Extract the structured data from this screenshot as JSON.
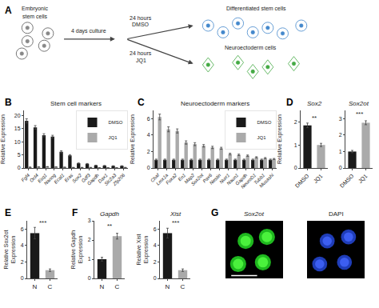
{
  "chart_data": [
    {
      "type": "diagram",
      "annotations": [
        "A",
        "Embryonic",
        "stem cells",
        "4 days culture",
        "24 hours",
        "DMSO",
        "24 hours",
        "JQ1",
        "Differentiated stem cells",
        "Neuroectoderm cells"
      ],
      "colors": [
        "#555555",
        "#888888",
        "#4488cc",
        "#44aa44"
      ]
    },
    {
      "type": "bar",
      "title": "Stem cell markers",
      "ylabel": "Relative Expression",
      "categories": [
        "Fgf4",
        "Oct4",
        "Esq1",
        "Nanog",
        "Ecat1",
        "Eras",
        "Sox2",
        "Gdf3",
        "Gapdh",
        "Dax1",
        "Slc2a3",
        "Zfp206"
      ],
      "series": [
        {
          "name": "DMSO",
          "color": "#1a1a1a",
          "values": [
            18.0,
            15.5,
            12.5,
            12.0,
            6.2,
            4.8,
            1.8,
            1.6,
            1.0,
            0.9,
            0.8,
            0.8
          ],
          "errors": [
            0.8,
            0.7,
            0.6,
            0.5,
            0.4,
            0.3,
            0.15,
            0.12,
            0.08,
            0.07,
            0.06,
            0.07
          ]
        },
        {
          "name": "JQ1",
          "color": "#aaaaaa",
          "values": [
            0.3,
            0.4,
            0.5,
            0.4,
            0.3,
            0.2,
            0.2,
            0.2,
            0.1,
            0.1,
            0.1,
            0.2
          ],
          "errors": [
            0.05,
            0.04,
            0.05,
            0.04,
            0.03,
            0.02,
            0.02,
            0.02,
            0.01,
            0.01,
            0.01,
            0.02
          ]
        }
      ],
      "ylim": [
        0,
        22
      ],
      "yticks": [
        0,
        5,
        10,
        15,
        20
      ],
      "grid": false,
      "legend": "upper right",
      "annotations": [
        "B"
      ]
    },
    {
      "type": "bar",
      "title": "Neuroectoderm markers",
      "ylabel": "Relative Expression",
      "categories": [
        "Chaf",
        "Lmx1a",
        "Foxa2",
        "En1",
        "Map2",
        "Sox2ot",
        "Pax6",
        "Nestin",
        "Nurr1",
        "Naun1",
        "Gapdh",
        "NeuroD1",
        "Tubb1",
        "Musashi"
      ],
      "series": [
        {
          "name": "DMSO",
          "color": "#1a1a1a",
          "values": [
            1.0,
            1.0,
            1.0,
            1.0,
            1.0,
            1.0,
            1.0,
            1.0,
            1.0,
            1.0,
            1.0,
            1.0,
            1.0,
            1.0
          ],
          "errors": [
            0.08,
            0.08,
            0.08,
            0.08,
            0.08,
            0.08,
            0.08,
            0.08,
            0.08,
            0.08,
            0.08,
            0.08,
            0.08,
            0.08
          ]
        },
        {
          "name": "JQ1",
          "color": "#aaaaaa",
          "values": [
            6.2,
            4.7,
            4.5,
            3.1,
            2.9,
            2.7,
            2.5,
            2.4,
            1.7,
            1.6,
            1.5,
            1.3,
            1.2,
            1.1
          ],
          "errors": [
            0.35,
            0.3,
            0.25,
            0.2,
            0.18,
            0.15,
            0.14,
            0.12,
            0.1,
            0.09,
            0.08,
            0.07,
            0.07,
            0.06
          ]
        }
      ],
      "ylim": [
        0,
        7
      ],
      "yticks": [
        0,
        2,
        4,
        6
      ],
      "grid": false,
      "legend": "upper right",
      "annotations": [
        "C"
      ]
    },
    {
      "type": "bar",
      "title": "Sox2",
      "ylabel": "Relative Expression",
      "categories": [
        "DMSO",
        "JQ1"
      ],
      "values": [
        1.85,
        1.0
      ],
      "errors": [
        0.1,
        0.07
      ],
      "colors": [
        "#1a1a1a",
        "#aaaaaa"
      ],
      "ylim": [
        0,
        2.5
      ],
      "yticks": [
        0,
        1,
        2
      ],
      "grid": false,
      "annotations": [
        "D",
        "**"
      ]
    },
    {
      "type": "bar",
      "title": "Sox2ot",
      "categories": [
        "DMSO",
        "JQ1"
      ],
      "values": [
        1.0,
        2.75
      ],
      "errors": [
        0.07,
        0.12
      ],
      "colors": [
        "#1a1a1a",
        "#aaaaaa"
      ],
      "ylim": [
        0,
        3.5
      ],
      "yticks": [
        0,
        1,
        2,
        3
      ],
      "grid": false,
      "annotations": [
        "***"
      ]
    },
    {
      "type": "bar",
      "ylabel": "Relative Sox2ot\nExpression",
      "categories": [
        "N",
        "C"
      ],
      "values": [
        5.5,
        1.0
      ],
      "errors": [
        0.7,
        0.15
      ],
      "colors": [
        "#1a1a1a",
        "#aaaaaa"
      ],
      "ylim": [
        0,
        7
      ],
      "yticks": [
        0,
        2,
        4,
        6
      ],
      "grid": false,
      "annotations": [
        "E",
        "***"
      ]
    },
    {
      "type": "bar",
      "title": "Gapdh",
      "ylabel": "Relative Gapdh\nExpression",
      "categories": [
        "N",
        "C"
      ],
      "values": [
        1.0,
        2.2
      ],
      "errors": [
        0.1,
        0.15
      ],
      "colors": [
        "#1a1a1a",
        "#aaaaaa"
      ],
      "ylim": [
        0,
        3
      ],
      "yticks": [
        0,
        1,
        2,
        3
      ],
      "grid": false,
      "annotations": [
        "F",
        "**"
      ]
    },
    {
      "type": "bar",
      "title": "Xist",
      "ylabel": "Relative Xist\nExpression",
      "categories": [
        "N",
        "C"
      ],
      "values": [
        5.5,
        1.0
      ],
      "errors": [
        0.6,
        0.15
      ],
      "colors": [
        "#1a1a1a",
        "#aaaaaa"
      ],
      "ylim": [
        0,
        7
      ],
      "yticks": [
        0,
        2,
        4,
        6
      ],
      "grid": false,
      "annotations": [
        "***"
      ]
    },
    {
      "type": "image",
      "title": "Sox2ot",
      "colors": [
        "#000000",
        "#22cc22",
        "#55ff44",
        "#ffffff"
      ],
      "annotations": [
        "G"
      ]
    },
    {
      "type": "image",
      "title": "DAPI",
      "colors": [
        "#000000",
        "#2244cc",
        "#4466ff"
      ]
    }
  ]
}
